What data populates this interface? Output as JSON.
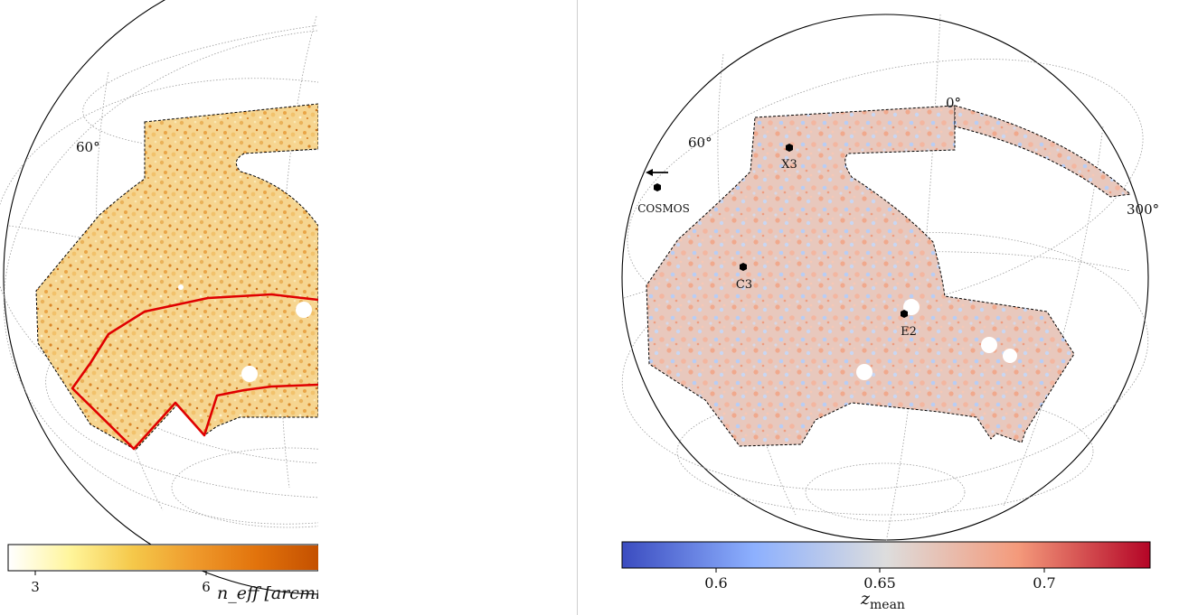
{
  "chart_data": [
    {
      "type": "heatmap",
      "projection": "orthographic sky map (panel cropped on the right)",
      "graticule_labels": [
        "60°"
      ],
      "colorbar": {
        "label": "n_eff [arcmin⁻",
        "ticks": [
          3,
          6
        ],
        "range": [
          2.5,
          7.5
        ],
        "colormap": [
          "#ffffff",
          "#fff59a",
          "#f5c84a",
          "#ef9a2c",
          "#e2730c",
          "#c45000"
        ]
      },
      "colors": {
        "outline": "#e00000",
        "footprint_edge": "#000000",
        "graticule": "#9a9a9a"
      }
    },
    {
      "type": "heatmap",
      "projection": "orthographic sky map",
      "graticule_labels": [
        "60°",
        "0°",
        "300°"
      ],
      "annotations": [
        "X3",
        "C3",
        "E2",
        "COSMOS"
      ],
      "colorbar": {
        "label": "z",
        "label_subscript": "mean",
        "ticks": [
          "0.6",
          "0.65",
          "0.7"
        ],
        "range": [
          0.572,
          0.733
        ],
        "colormap": [
          "#3b4cc0",
          "#8db0fe",
          "#dddddd",
          "#f49a7b",
          "#b40426"
        ]
      },
      "colors": {
        "low": "#3b4cc0",
        "mid": "#dddddd",
        "high": "#b40426",
        "footprint_edge": "#000000",
        "graticule": "#9a9a9a"
      }
    }
  ]
}
